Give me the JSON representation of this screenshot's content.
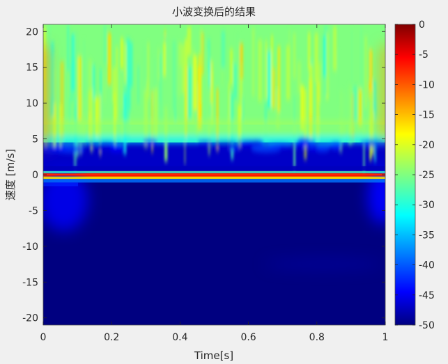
{
  "chart_data": {
    "type": "heatmap",
    "title": "小波变换后的结果",
    "xlabel": "Time[s]",
    "ylabel": "速度 [m/s]",
    "xlim": [
      0,
      1
    ],
    "ylim": [
      -21,
      21
    ],
    "x_ticks": [
      0,
      0.2,
      0.4,
      0.6,
      0.8,
      1
    ],
    "x_tick_labels": [
      "0",
      "0.2",
      "0.4",
      "0.6",
      "0.8",
      "1"
    ],
    "y_ticks": [
      20,
      15,
      10,
      5,
      0,
      -5,
      -10,
      -15,
      -20
    ],
    "y_tick_labels": [
      "20",
      "15",
      "10",
      "5",
      "0",
      "-5",
      "-10",
      "-15",
      "-20"
    ],
    "colorbar": {
      "colormap": "jet",
      "range": [
        -50,
        0
      ],
      "ticks": [
        0,
        -5,
        -10,
        -15,
        -20,
        -25,
        -30,
        -35,
        -40,
        -45,
        -50
      ],
      "tick_labels": [
        "0",
        "-5",
        "-10",
        "-15",
        "-20",
        "-25",
        "-30",
        "-35",
        "-40",
        "-45",
        "-50"
      ]
    },
    "approximate_levels": [
      {
        "velocity_range": [
          7,
          21
        ],
        "level_range": [
          -30,
          -20
        ]
      },
      {
        "velocity_range": [
          4.5,
          7
        ],
        "level_range": [
          -30,
          -24
        ]
      },
      {
        "velocity_range": [
          0.5,
          4.5
        ],
        "level_range": [
          -50,
          -43
        ]
      },
      {
        "velocity_range": [
          -0.5,
          0.5
        ],
        "level_range": [
          -10,
          0
        ]
      },
      {
        "velocity_range": [
          -21,
          -1
        ],
        "level_range": [
          -50,
          -50
        ]
      }
    ]
  }
}
